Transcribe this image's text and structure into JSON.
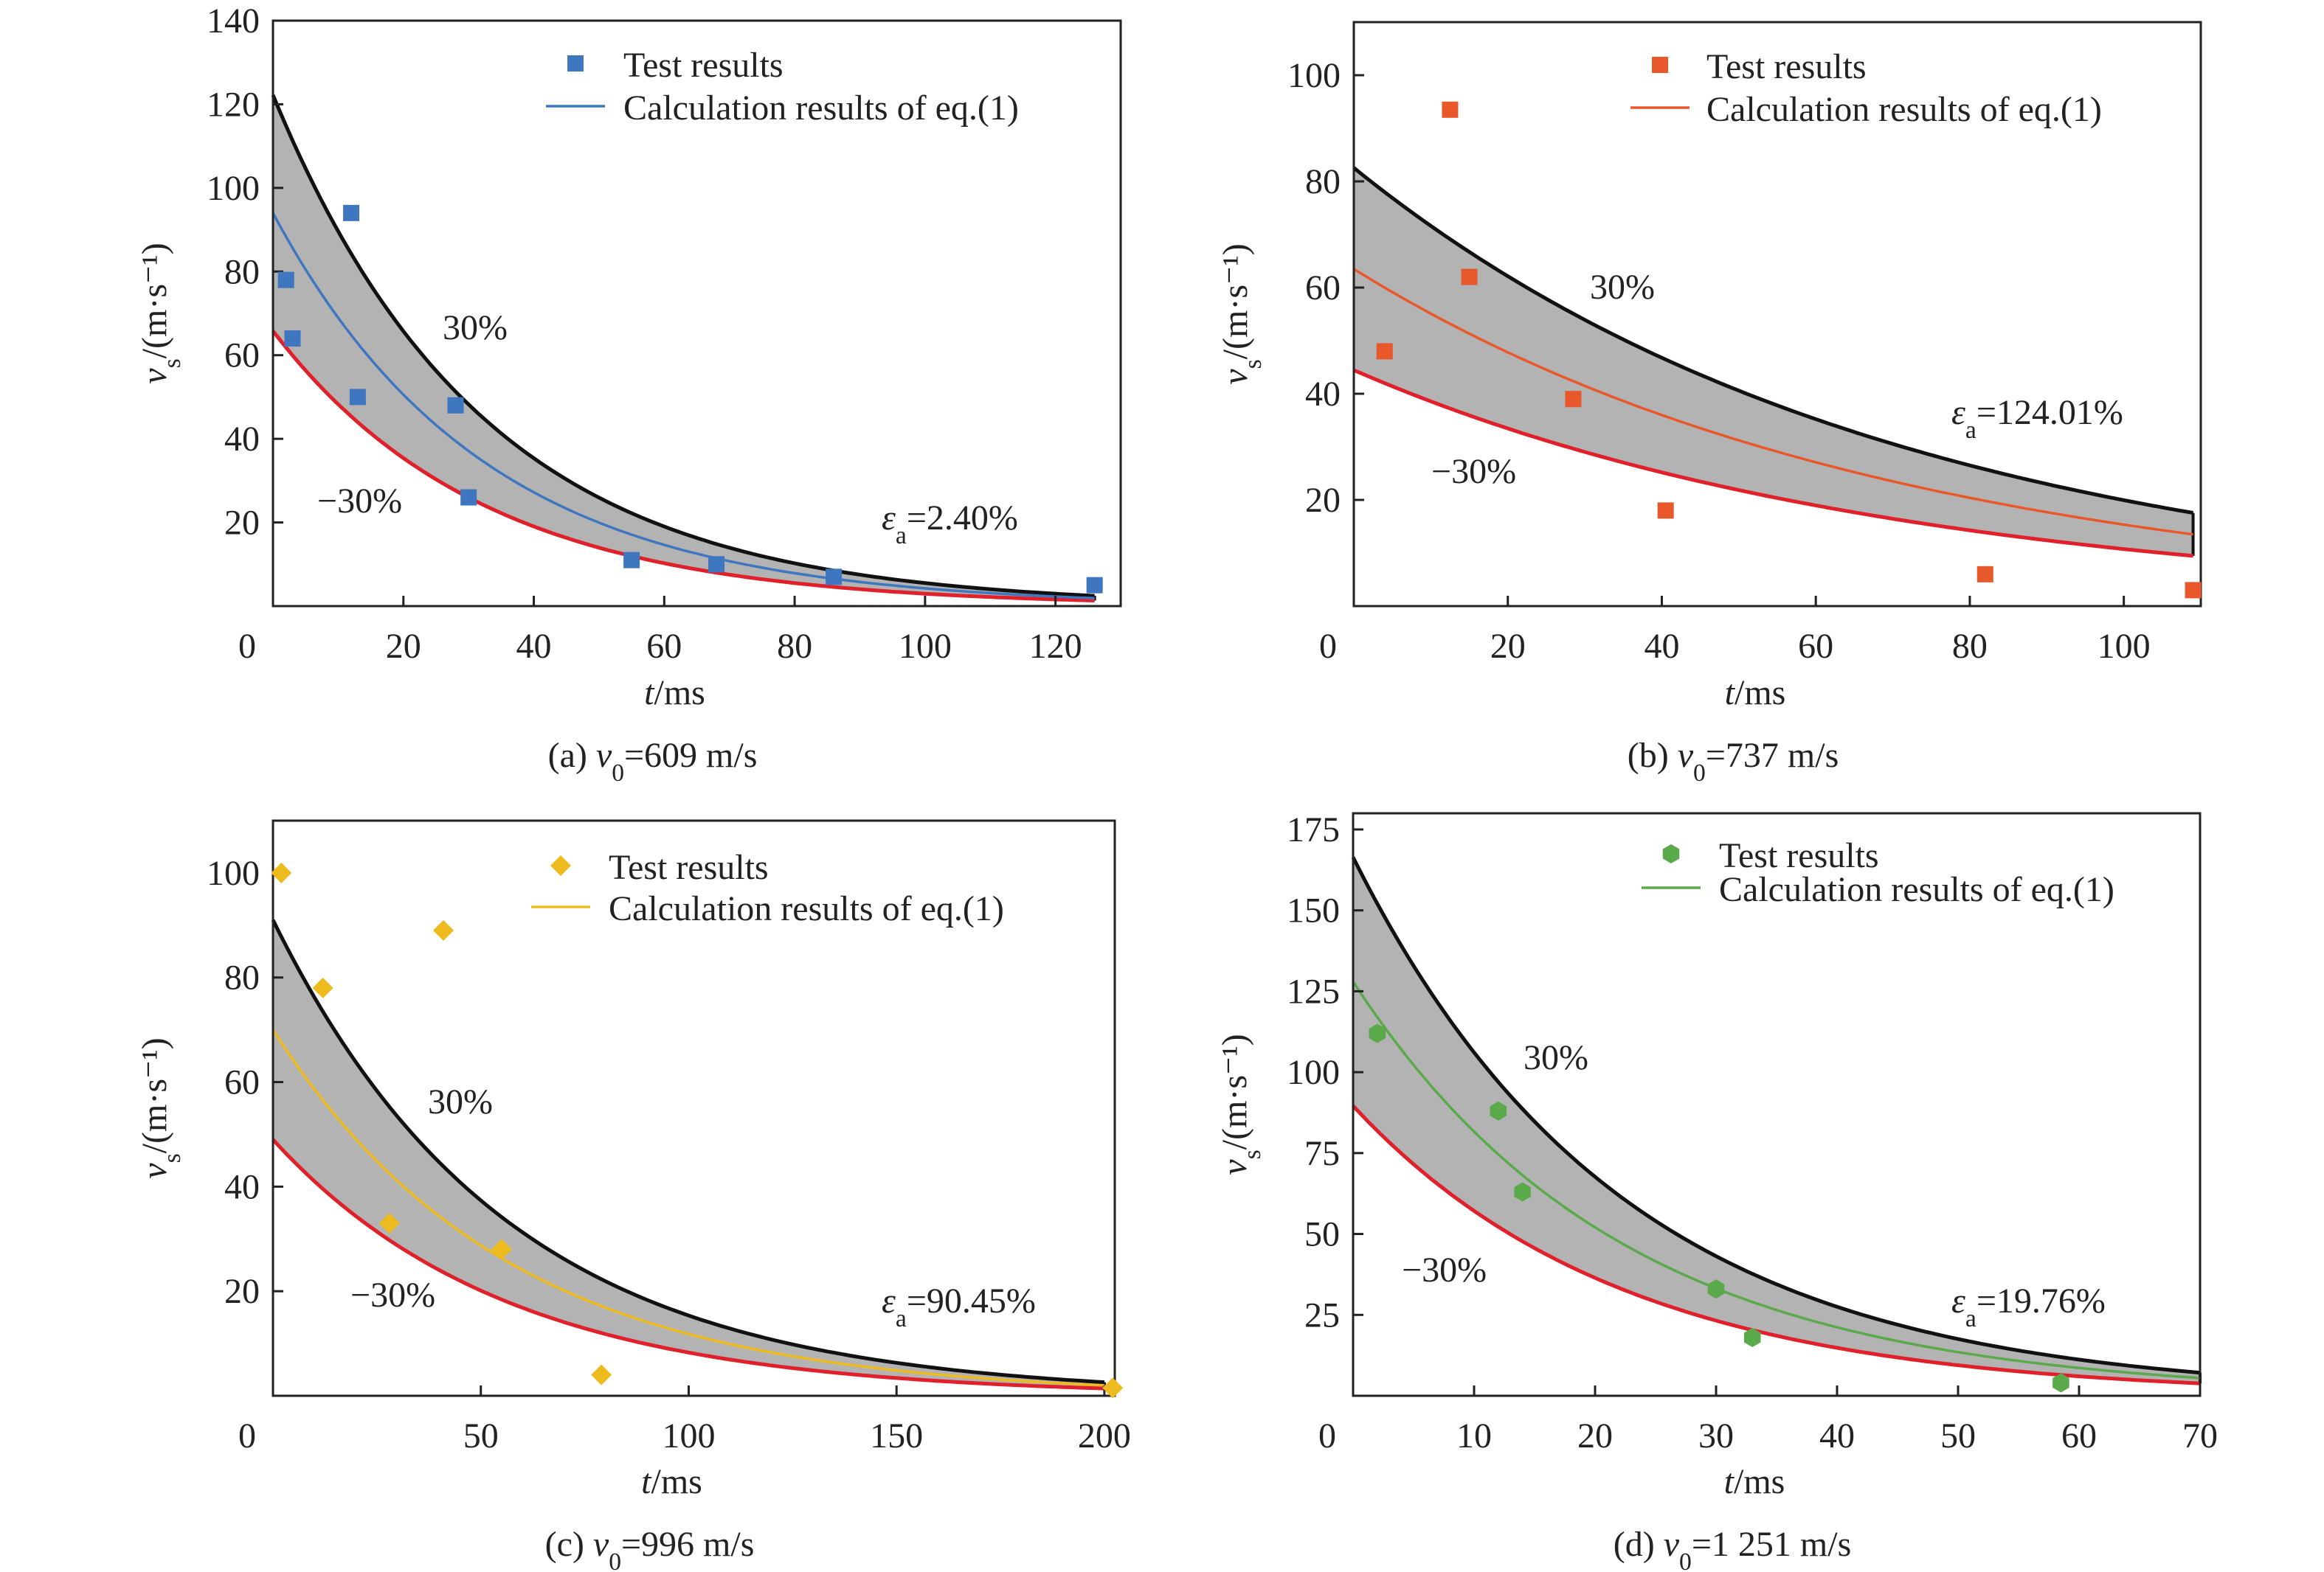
{
  "chart_data": [
    {
      "type": "scatter",
      "caption_prefix": "(a) ",
      "caption_var": "v",
      "caption_sub": "0",
      "caption_value": "=609 m/s",
      "xlabel_var": "t",
      "xlabel_unit": "/ms",
      "ylabel_var": "v",
      "ylabel_sub": "s",
      "ylabel_unit": "/(m·s⁻¹)",
      "xlim": [
        0,
        130
      ],
      "ylim": [
        0,
        140
      ],
      "xticks": [
        0,
        20,
        40,
        60,
        80,
        100,
        120
      ],
      "yticks": [
        20,
        40,
        60,
        80,
        100,
        120,
        140
      ],
      "color": "#3f76c0",
      "marker": "square",
      "legend": {
        "points": "Test results",
        "line": "Calculation results of eq.(1)",
        "position": "top-right"
      },
      "test_results": {
        "x": [
          2,
          3,
          12,
          13,
          28,
          30,
          55,
          68,
          86,
          126
        ],
        "y": [
          78,
          64,
          94,
          50,
          48,
          26,
          11,
          10,
          7,
          5
        ]
      },
      "calculation_curve": {
        "v0": 94,
        "decay": 0.031,
        "t_range": [
          0,
          126
        ]
      },
      "band": {
        "upper_label": "30%",
        "lower_label": "−30%",
        "percent": 30
      },
      "error_label_var": "ε",
      "error_label_sub": "a",
      "error_label_value": "=2.40%"
    },
    {
      "type": "scatter",
      "caption_prefix": "(b) ",
      "caption_var": "v",
      "caption_sub": "0",
      "caption_value": "=737 m/s",
      "xlabel_var": "t",
      "xlabel_unit": "/ms",
      "ylabel_var": "v",
      "ylabel_sub": "s",
      "ylabel_unit": "/(m·s⁻¹)",
      "xlim": [
        0,
        110
      ],
      "ylim": [
        0,
        110
      ],
      "xticks": [
        0,
        20,
        40,
        60,
        80,
        100
      ],
      "yticks": [
        20,
        40,
        60,
        80,
        100
      ],
      "color": "#e8582a",
      "marker": "square",
      "legend": {
        "points": "Test results",
        "line": "Calculation results of eq.(1)",
        "position": "top-right"
      },
      "test_results": {
        "x": [
          4,
          12.5,
          15,
          28.5,
          40.5,
          82,
          109
        ],
        "y": [
          48,
          93.5,
          62,
          39,
          18,
          6,
          3
        ]
      },
      "calculation_curve": {
        "v0": 63.5,
        "decay": 0.0142,
        "t_range": [
          0,
          109
        ]
      },
      "band": {
        "upper_label": "30%",
        "lower_label": "−30%",
        "percent": 30
      },
      "error_label_var": "ε",
      "error_label_sub": "a",
      "error_label_value": "=124.01%"
    },
    {
      "type": "scatter",
      "caption_prefix": "(c) ",
      "caption_var": "v",
      "caption_sub": "0",
      "caption_value": "=996 m/s",
      "xlabel_var": "t",
      "xlabel_unit": "/ms",
      "ylabel_var": "v",
      "ylabel_sub": "s",
      "ylabel_unit": "/(m·s⁻¹)",
      "xlim": [
        0,
        202.5
      ],
      "ylim": [
        0,
        110
      ],
      "xticks": [
        0,
        50,
        100,
        150,
        200
      ],
      "yticks": [
        20,
        40,
        60,
        80,
        100
      ],
      "color": "#eebb1e",
      "marker": "diamond",
      "legend": {
        "points": "Test results",
        "line": "Calculation results of eq.(1)",
        "position": "top-right"
      },
      "test_results": {
        "x": [
          2,
          12,
          28,
          41,
          55,
          79,
          202
        ],
        "y": [
          100,
          78,
          33,
          89,
          28,
          4,
          1.5
        ]
      },
      "calculation_curve": {
        "v0": 70,
        "decay": 0.0178,
        "t_range": [
          0,
          200
        ]
      },
      "band": {
        "upper_label": "30%",
        "lower_label": "−30%",
        "percent": 30
      },
      "error_label_var": "ε",
      "error_label_sub": "a",
      "error_label_value": "=90.45%"
    },
    {
      "type": "scatter",
      "caption_prefix": "(d) ",
      "caption_var": "v",
      "caption_sub": "0",
      "caption_value": "=1 251 m/s",
      "xlabel_var": "t",
      "xlabel_unit": "/ms",
      "ylabel_var": "v",
      "ylabel_sub": "s",
      "ylabel_unit": "/(m·s⁻¹)",
      "xlim": [
        0,
        70
      ],
      "ylim": [
        0,
        180
      ],
      "xticks": [
        0,
        10,
        20,
        30,
        40,
        50,
        60,
        70
      ],
      "yticks": [
        25,
        50,
        75,
        100,
        125,
        150,
        175
      ],
      "color": "#5aaa4c",
      "marker": "hexagon",
      "legend": {
        "points": "Test results",
        "line": "Calculation results of eq.(1)",
        "position": "top-right"
      },
      "test_results": {
        "x": [
          2,
          12,
          14,
          30,
          33,
          58.5
        ],
        "y": [
          112,
          88,
          63,
          33,
          18,
          4
        ]
      },
      "calculation_curve": {
        "v0": 128,
        "decay": 0.045,
        "t_range": [
          0,
          70
        ]
      },
      "band": {
        "upper_label": "30%",
        "lower_label": "−30%",
        "percent": 30
      },
      "error_label_var": "ε",
      "error_label_sub": "a",
      "error_label_value": "=19.76%"
    }
  ]
}
